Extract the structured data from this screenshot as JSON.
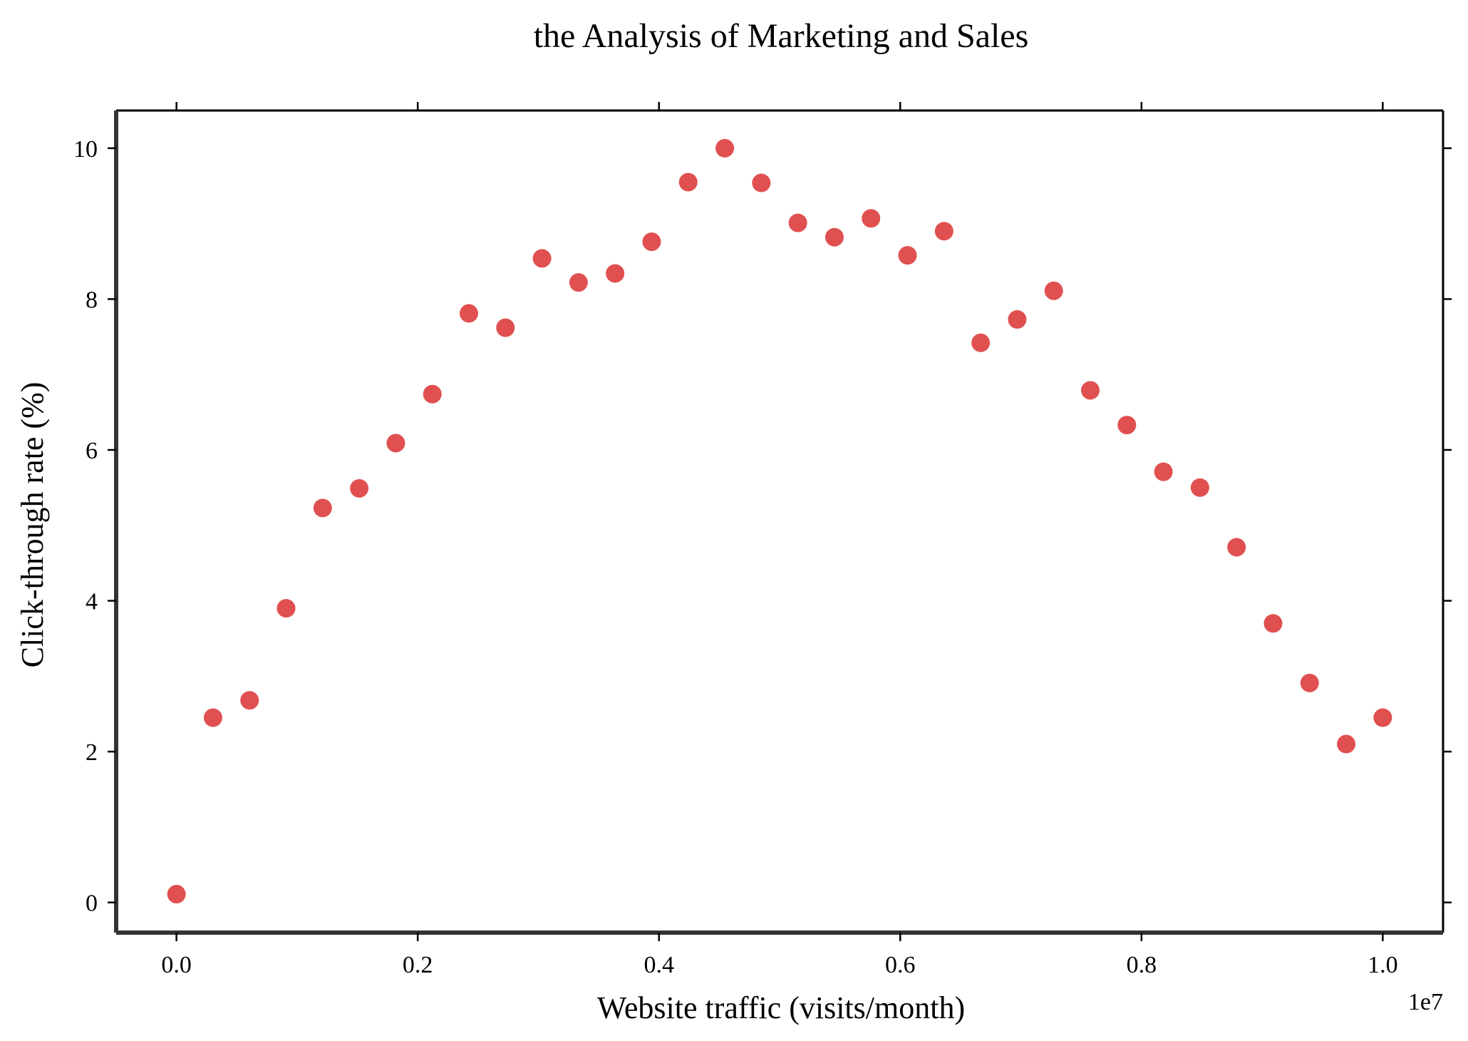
{
  "chart_data": {
    "type": "scatter",
    "title": "the Analysis of Marketing and Sales",
    "xlabel": "Website traffic (visits/month)",
    "ylabel": "Click-through rate (%)",
    "x_offset_label": "1e7",
    "xlim": [
      -500000,
      10500000
    ],
    "ylim": [
      -0.4,
      10.5
    ],
    "x_ticks": [
      {
        "value": 0,
        "label": "0.0"
      },
      {
        "value": 2000000,
        "label": "0.2"
      },
      {
        "value": 4000000,
        "label": "0.4"
      },
      {
        "value": 6000000,
        "label": "0.6"
      },
      {
        "value": 8000000,
        "label": "0.8"
      },
      {
        "value": 10000000,
        "label": "1.0"
      }
    ],
    "y_ticks": [
      {
        "value": 0,
        "label": "0"
      },
      {
        "value": 2,
        "label": "2"
      },
      {
        "value": 4,
        "label": "4"
      },
      {
        "value": 6,
        "label": "6"
      },
      {
        "value": 8,
        "label": "8"
      },
      {
        "value": 10,
        "label": "10"
      }
    ],
    "grid": false,
    "legend": "none",
    "series": [
      {
        "color": "#e05050",
        "points": [
          {
            "x": 0,
            "y": 0.11
          },
          {
            "x": 303030,
            "y": 2.45
          },
          {
            "x": 606061,
            "y": 2.68
          },
          {
            "x": 909091,
            "y": 3.9
          },
          {
            "x": 1212121,
            "y": 5.23
          },
          {
            "x": 1515152,
            "y": 5.49
          },
          {
            "x": 1818182,
            "y": 6.09
          },
          {
            "x": 2121212,
            "y": 6.74
          },
          {
            "x": 2424242,
            "y": 7.81
          },
          {
            "x": 2727273,
            "y": 7.62
          },
          {
            "x": 3030303,
            "y": 8.54
          },
          {
            "x": 3333333,
            "y": 8.22
          },
          {
            "x": 3636364,
            "y": 8.34
          },
          {
            "x": 3939394,
            "y": 8.76
          },
          {
            "x": 4242424,
            "y": 9.55
          },
          {
            "x": 4545455,
            "y": 10.0
          },
          {
            "x": 4848485,
            "y": 9.54
          },
          {
            "x": 5151515,
            "y": 9.01
          },
          {
            "x": 5454545,
            "y": 8.82
          },
          {
            "x": 5757576,
            "y": 9.07
          },
          {
            "x": 6060606,
            "y": 8.58
          },
          {
            "x": 6363636,
            "y": 8.9
          },
          {
            "x": 6666667,
            "y": 7.42
          },
          {
            "x": 6969697,
            "y": 7.73
          },
          {
            "x": 7272727,
            "y": 8.11
          },
          {
            "x": 7575758,
            "y": 6.79
          },
          {
            "x": 7878788,
            "y": 6.33
          },
          {
            "x": 8181818,
            "y": 5.71
          },
          {
            "x": 8484848,
            "y": 5.5
          },
          {
            "x": 8787879,
            "y": 4.71
          },
          {
            "x": 9090909,
            "y": 3.7
          },
          {
            "x": 9393939,
            "y": 2.91
          },
          {
            "x": 9696970,
            "y": 2.1
          },
          {
            "x": 10000000,
            "y": 2.45
          }
        ]
      }
    ]
  }
}
